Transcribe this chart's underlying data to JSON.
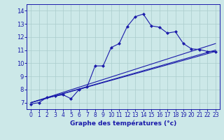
{
  "title": "Graphe des températures (°c)",
  "background_color": "#cce8e8",
  "grid_color": "#aacccc",
  "line_color": "#1a1aaa",
  "xlim": [
    -0.5,
    23.5
  ],
  "ylim": [
    6.5,
    14.5
  ],
  "xticks": [
    0,
    1,
    2,
    3,
    4,
    5,
    6,
    7,
    8,
    9,
    10,
    11,
    12,
    13,
    14,
    15,
    16,
    17,
    18,
    19,
    20,
    21,
    22,
    23
  ],
  "yticks": [
    7,
    8,
    9,
    10,
    11,
    12,
    13,
    14
  ],
  "series": [
    {
      "x": [
        0,
        1,
        2,
        3,
        4,
        5,
        6,
        7,
        8,
        9,
        10,
        11,
        12,
        13,
        14,
        15,
        16,
        17,
        18,
        19,
        20,
        21,
        22,
        23
      ],
      "y": [
        6.9,
        7.0,
        7.4,
        7.5,
        7.6,
        7.3,
        8.0,
        8.2,
        9.8,
        9.8,
        11.2,
        11.5,
        12.8,
        13.55,
        13.75,
        12.85,
        12.75,
        12.3,
        12.4,
        11.5,
        11.1,
        11.05,
        10.9,
        10.9
      ],
      "marker": "D",
      "markersize": 2.0,
      "has_marker": true
    },
    {
      "x": [
        0,
        23
      ],
      "y": [
        7.0,
        11.5
      ],
      "marker": null,
      "has_marker": false
    },
    {
      "x": [
        0,
        23
      ],
      "y": [
        7.0,
        11.0
      ],
      "marker": null,
      "has_marker": false
    },
    {
      "x": [
        0,
        23
      ],
      "y": [
        7.0,
        10.9
      ],
      "marker": null,
      "has_marker": false
    }
  ]
}
